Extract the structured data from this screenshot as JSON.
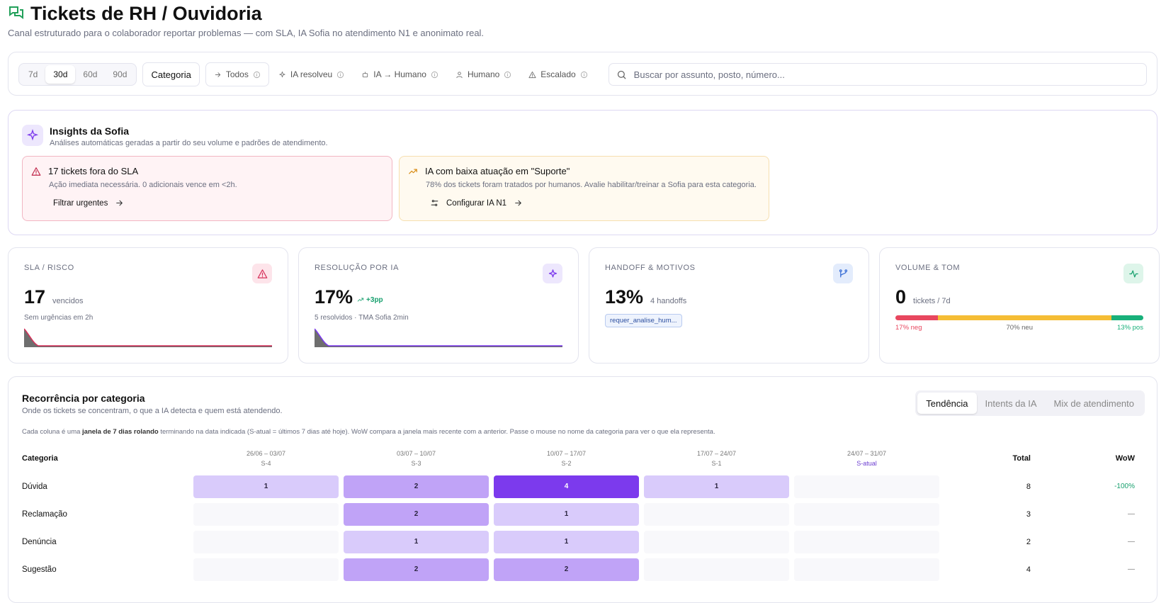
{
  "header": {
    "title": "Tickets de RH / Ouvidoria",
    "subtitle": "Canal estruturado para o colaborador reportar problemas — com SLA, IA Sofia no atendimento N1 e anonimato real."
  },
  "filters": {
    "periods": [
      "7d",
      "30d",
      "60d",
      "90d"
    ],
    "category": "Categoria",
    "modes": [
      "Todos",
      "IA resolveu",
      "IA → Humano",
      "Humano",
      "Escalado"
    ],
    "search_placeholder": "Buscar por assunto, posto, número..."
  },
  "insights": {
    "title": "Insights da Sofia",
    "subtitle": "Análises automáticas geradas a partir do seu volume e padrões de atendimento.",
    "cards": [
      {
        "title": "17 tickets fora do SLA",
        "text": "Ação imediata necessária. 0 adicionais vence em <2h.",
        "action": "Filtrar urgentes"
      },
      {
        "title": "IA com baixa atuação em \"Suporte\"",
        "text": "78% dos tickets foram tratados por humanos. Avalie habilitar/treinar a Sofia para esta categoria.",
        "action": "Configurar IA N1"
      }
    ]
  },
  "kpis": [
    {
      "label": "SLA / RISCO",
      "value": "17",
      "unit": "vencidos",
      "note": "Sem urgências em 2h"
    },
    {
      "label": "RESOLUÇÃO POR IA",
      "value": "17%",
      "delta": "+3pp",
      "note": "5 resolvidos · TMA Sofia 2min"
    },
    {
      "label": "HANDOFF & MOTIVOS",
      "value": "13%",
      "unit": "4 handoffs",
      "tag": "requer_analise_hum..."
    },
    {
      "label": "VOLUME & TOM",
      "value": "0",
      "unit": "tickets / 7d",
      "segments": [
        {
          "label": "17% neg",
          "value": 17,
          "color": "#e8475f"
        },
        {
          "label": "70% neu",
          "value": 70,
          "color": "#f5bd35"
        },
        {
          "label": "13% pos",
          "value": 13,
          "color": "#18b07a"
        }
      ]
    }
  ],
  "recurrence": {
    "title": "Recorrência por categoria",
    "subtitle": "Onde os tickets se concentram, o que a IA detecta e quem está atendendo.",
    "tabs": [
      "Tendência",
      "Intents da IA",
      "Mix de atendimento"
    ],
    "note_before": "Cada coluna é uma ",
    "note_bold": "janela de 7 dias rolando",
    "note_after": " terminando na data indicada (S-atual = últimos 7 dias até hoje). WoW compara a janela mais recente com a anterior. Passe o mouse no nome da categoria para ver o que ela representa.",
    "category_header": "Categoria",
    "weeks": [
      {
        "range": "26/06 – 03/07",
        "label": "S-4"
      },
      {
        "range": "03/07 – 10/07",
        "label": "S-3"
      },
      {
        "range": "10/07 – 17/07",
        "label": "S-2"
      },
      {
        "range": "17/07 – 24/07",
        "label": "S-1"
      },
      {
        "range": "24/07 – 31/07",
        "label": "S-atual"
      }
    ],
    "total_header": "Total",
    "wow_header": "WoW",
    "rows": [
      {
        "name": "Dúvida",
        "values": [
          1,
          2,
          4,
          1,
          null
        ],
        "total": 8,
        "wow": "-100%"
      },
      {
        "name": "Reclamação",
        "values": [
          null,
          2,
          1,
          null,
          null
        ],
        "total": 3,
        "wow": "—"
      },
      {
        "name": "Denúncia",
        "values": [
          null,
          1,
          1,
          null,
          null
        ],
        "total": 2,
        "wow": "—"
      },
      {
        "name": "Sugestão",
        "values": [
          null,
          2,
          2,
          null,
          null
        ],
        "total": 4,
        "wow": "—"
      }
    ]
  }
}
